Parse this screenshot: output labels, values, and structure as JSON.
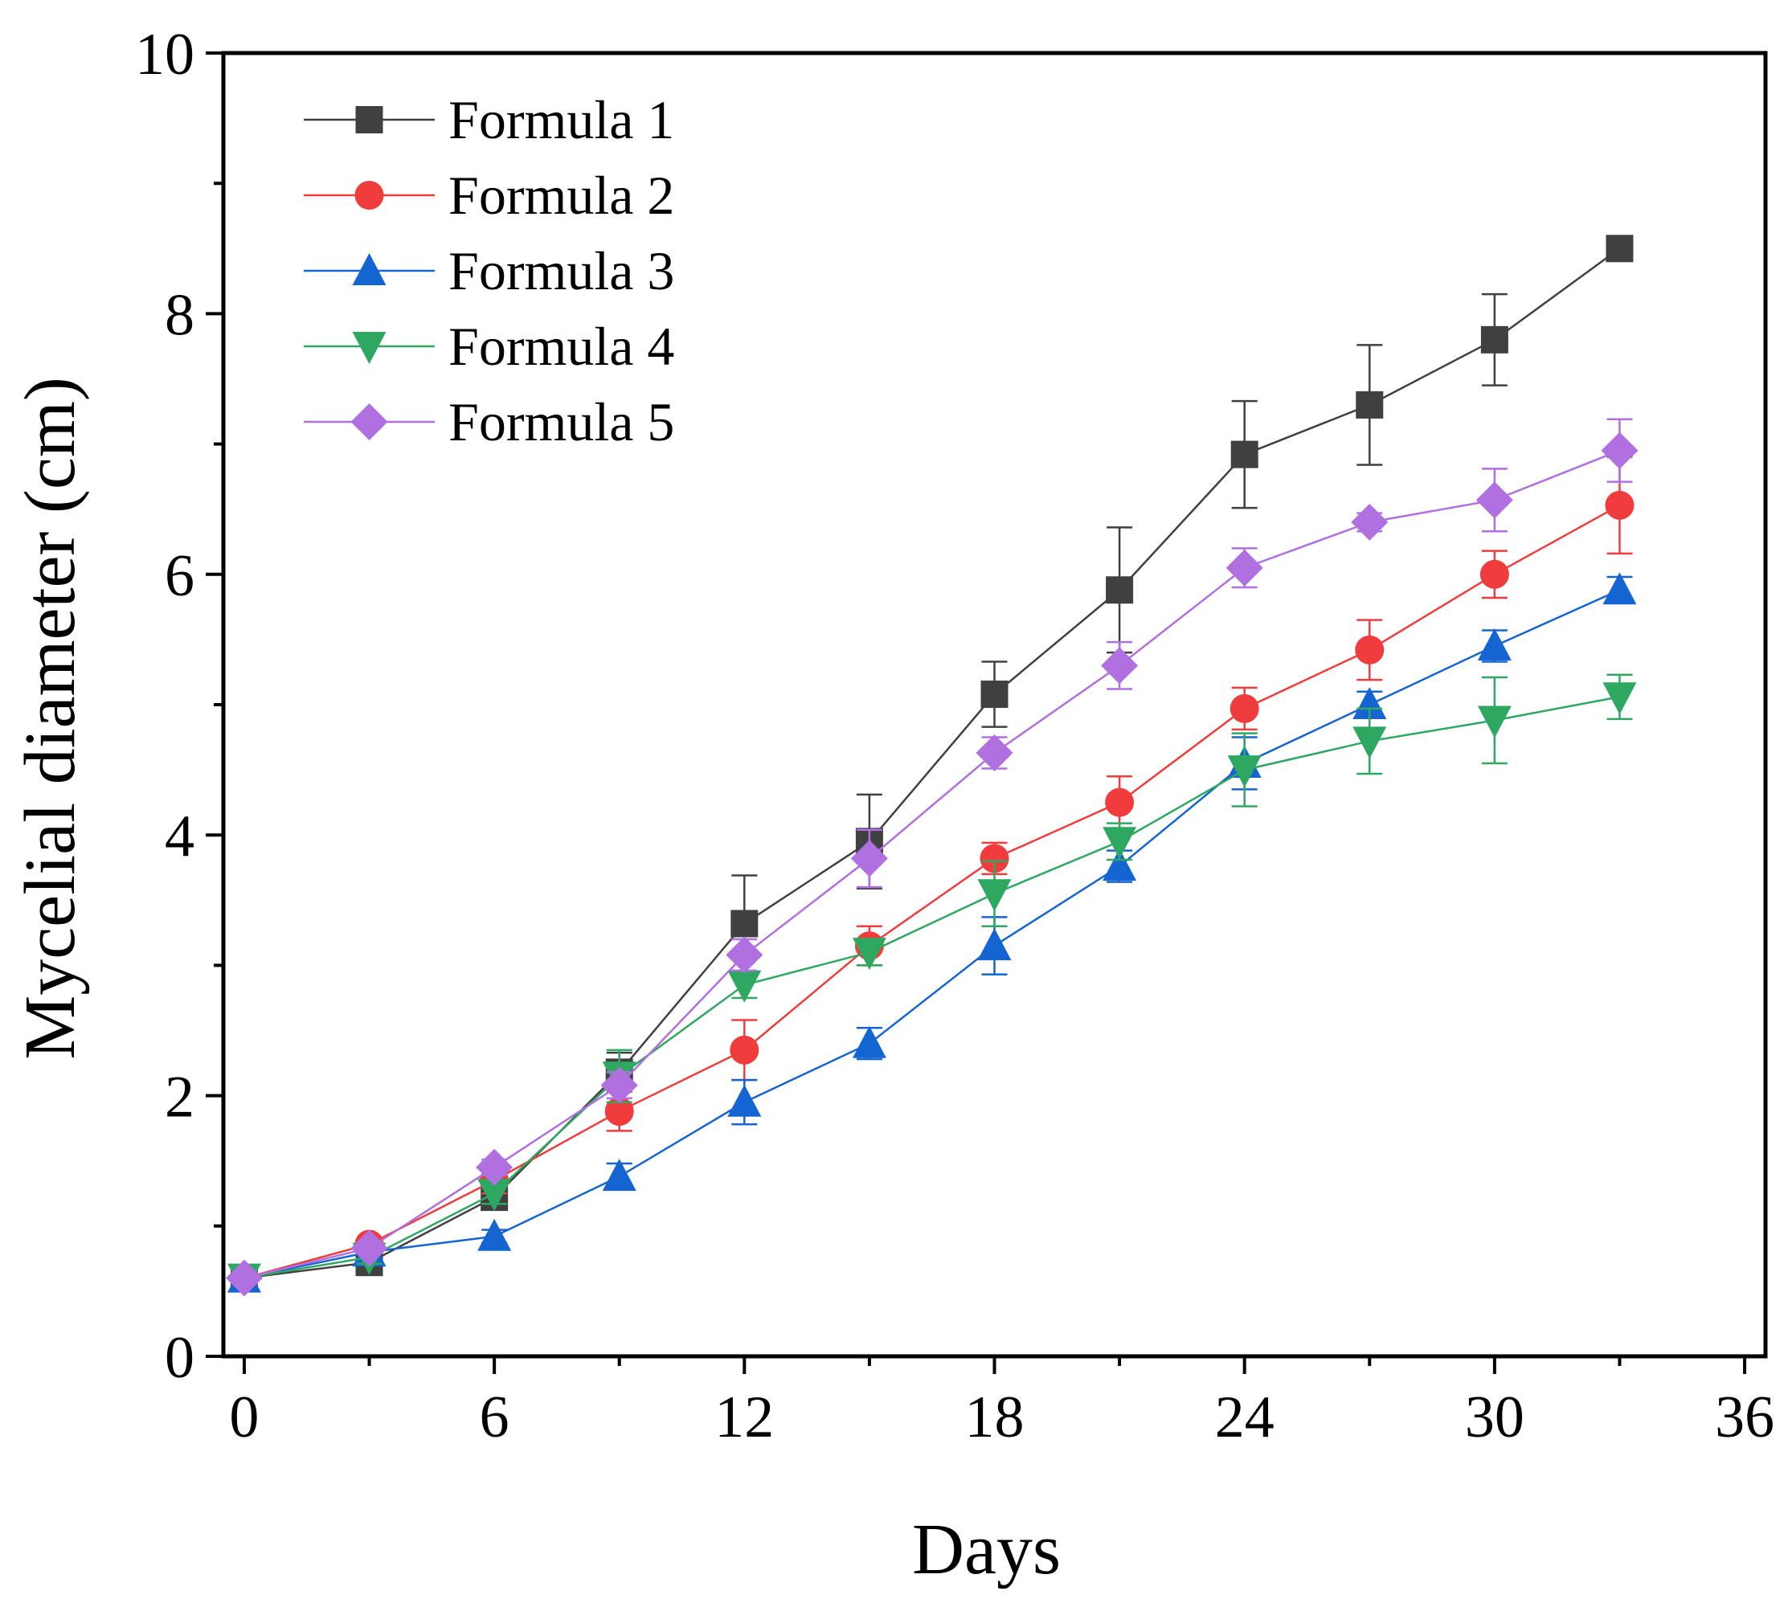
{
  "chart_data": {
    "type": "line",
    "title": "",
    "xlabel": "Days",
    "ylabel": "Mycelial diameter (cm)",
    "xlim": [
      -0.5,
      36.5
    ],
    "ylim": [
      0,
      10
    ],
    "xticks": [
      0,
      6,
      12,
      18,
      24,
      30,
      36
    ],
    "yticks": [
      0,
      2,
      4,
      6,
      8,
      10
    ],
    "x_minor_step": 3,
    "y_minor_step": 1,
    "grid": false,
    "legend": "top-left",
    "x": [
      0,
      3,
      6,
      9,
      12,
      15,
      18,
      21,
      24,
      27,
      30,
      33
    ],
    "series": [
      {
        "name": "Formula 1",
        "color": "#404040",
        "marker": "square",
        "values": [
          0.6,
          0.72,
          1.22,
          2.18,
          3.32,
          3.95,
          5.08,
          5.88,
          6.92,
          7.3,
          7.8,
          8.5
        ],
        "errors": [
          0.03,
          0.05,
          0.08,
          0.15,
          0.37,
          0.36,
          0.25,
          0.48,
          0.41,
          0.46,
          0.35,
          0.03
        ]
      },
      {
        "name": "Formula 2",
        "color": "#f03c3c",
        "marker": "circle",
        "values": [
          0.6,
          0.86,
          1.35,
          1.88,
          2.35,
          3.15,
          3.82,
          4.25,
          4.97,
          5.42,
          6.0,
          6.53
        ],
        "errors": [
          0.03,
          0.04,
          0.1,
          0.15,
          0.23,
          0.15,
          0.12,
          0.2,
          0.16,
          0.23,
          0.18,
          0.37
        ]
      },
      {
        "name": "Formula 3",
        "color": "#1464d2",
        "marker": "triangle-up",
        "values": [
          0.6,
          0.8,
          0.92,
          1.38,
          1.95,
          2.4,
          3.15,
          3.76,
          4.55,
          5.0,
          5.45,
          5.88
        ],
        "errors": [
          0.03,
          0.05,
          0.05,
          0.1,
          0.17,
          0.12,
          0.22,
          0.12,
          0.2,
          0.1,
          0.12,
          0.1
        ]
      },
      {
        "name": "Formula 4",
        "color": "#2ea860",
        "marker": "triangle-down",
        "values": [
          0.6,
          0.76,
          1.25,
          2.15,
          2.85,
          3.1,
          3.55,
          3.95,
          4.5,
          4.72,
          4.88,
          5.06
        ],
        "errors": [
          0.03,
          0.05,
          0.08,
          0.2,
          0.1,
          0.1,
          0.25,
          0.14,
          0.28,
          0.25,
          0.33,
          0.17
        ]
      },
      {
        "name": "Formula 5",
        "color": "#b070e0",
        "marker": "diamond",
        "values": [
          0.6,
          0.83,
          1.45,
          2.08,
          3.08,
          3.82,
          4.63,
          5.3,
          6.05,
          6.4,
          6.57,
          6.95
        ],
        "errors": [
          0.03,
          0.04,
          0.06,
          0.1,
          0.12,
          0.22,
          0.12,
          0.18,
          0.15,
          0.07,
          0.24,
          0.24
        ]
      }
    ]
  }
}
